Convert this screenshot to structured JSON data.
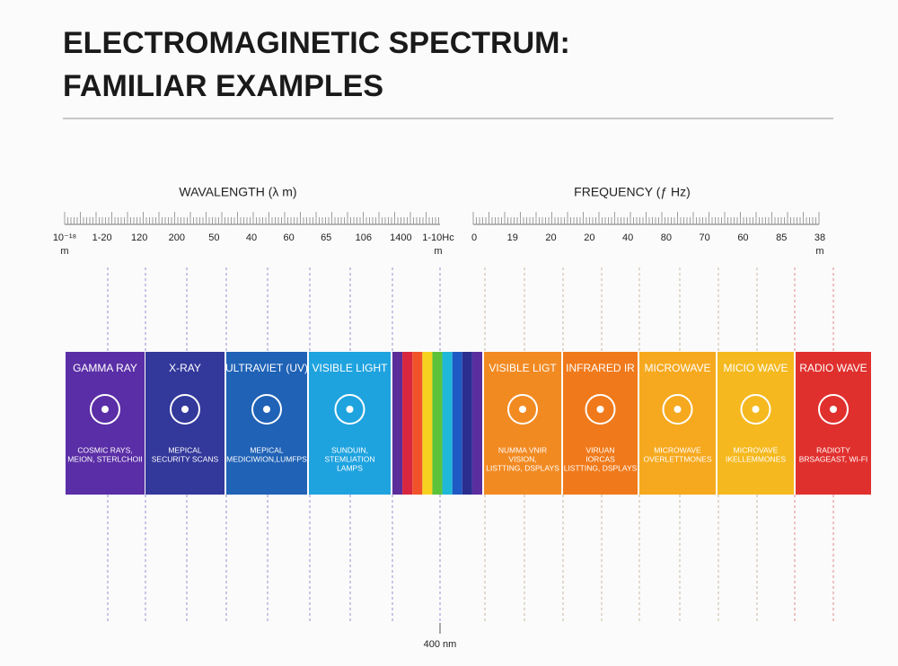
{
  "header": {
    "title": [
      "ELECTROMAGINETIC SPECTRUM:",
      "FAMILIAR EXAMPLES"
    ]
  },
  "wavelength": {
    "label": "WAVALENGTH (λ  m)",
    "ticks": [
      "10⁻¹⁸",
      "1-20",
      "120",
      "200",
      "50",
      "40",
      "60",
      "65",
      "106",
      "1400",
      "1-10Hc"
    ],
    "units": [
      "m",
      "m"
    ]
  },
  "frequency": {
    "label": "FREQUENCY (ƒ Hz)",
    "ticks": [
      "0",
      "19",
      "20",
      "20",
      "40",
      "80",
      "70",
      "60",
      "85",
      "38"
    ],
    "units": [
      "m"
    ]
  },
  "left_bands": [
    {
      "name": "GAMMA RAY",
      "description": [
        "COSMIC RAYS,",
        "MEION, STERLCHOII"
      ],
      "color": "#5a2ea6"
    },
    {
      "name": "X-RAY",
      "description": [
        "MEPICAL",
        "SECURITY SCANS"
      ],
      "color": "#33389b"
    },
    {
      "name": "ULTRAVIET (UV)",
      "description": [
        "MEPICAL",
        "MEDICIWION,LUMFPS"
      ],
      "color": "#1f62b6"
    },
    {
      "name": "VISIBLE LIGHT",
      "description": [
        "SUNDUIN,",
        "STEMLIATION",
        "LAMPS"
      ],
      "color": "#1fa3df"
    }
  ],
  "stripes": [
    "#5b2d9a",
    "#d7263d",
    "#f0532a",
    "#f6d21f",
    "#5cc23a",
    "#1fb8d8",
    "#1f59c4",
    "#2b2d8f",
    "#5a2e9e"
  ],
  "right_bands": [
    {
      "name": "VISIBLE LIGT",
      "description": [
        "NUMMA VNIR",
        "VISION,",
        "LISTTING, DSPLAYS"
      ],
      "color": "#f28a22"
    },
    {
      "name": "INFRARED IR",
      "description": [
        "VIRUAN",
        "IORCAS",
        "LISTTING, DSPLAYS"
      ],
      "color": "#f07a1b"
    },
    {
      "name": "MICROWAVE",
      "description": [
        "MICROWAVE",
        "OVERLETTMONES"
      ],
      "color": "#f6a91e"
    },
    {
      "name": "MICIO WAVE",
      "description": [
        "MICROVAVE",
        "IKELLEMMONES"
      ],
      "color": "#f5b91f"
    },
    {
      "name": "RADIO WAVE",
      "description": [
        "RADIOTY",
        "BRSAGEAST, WI-FI"
      ],
      "color": "#e0302e"
    }
  ],
  "footnote": "400 nm"
}
